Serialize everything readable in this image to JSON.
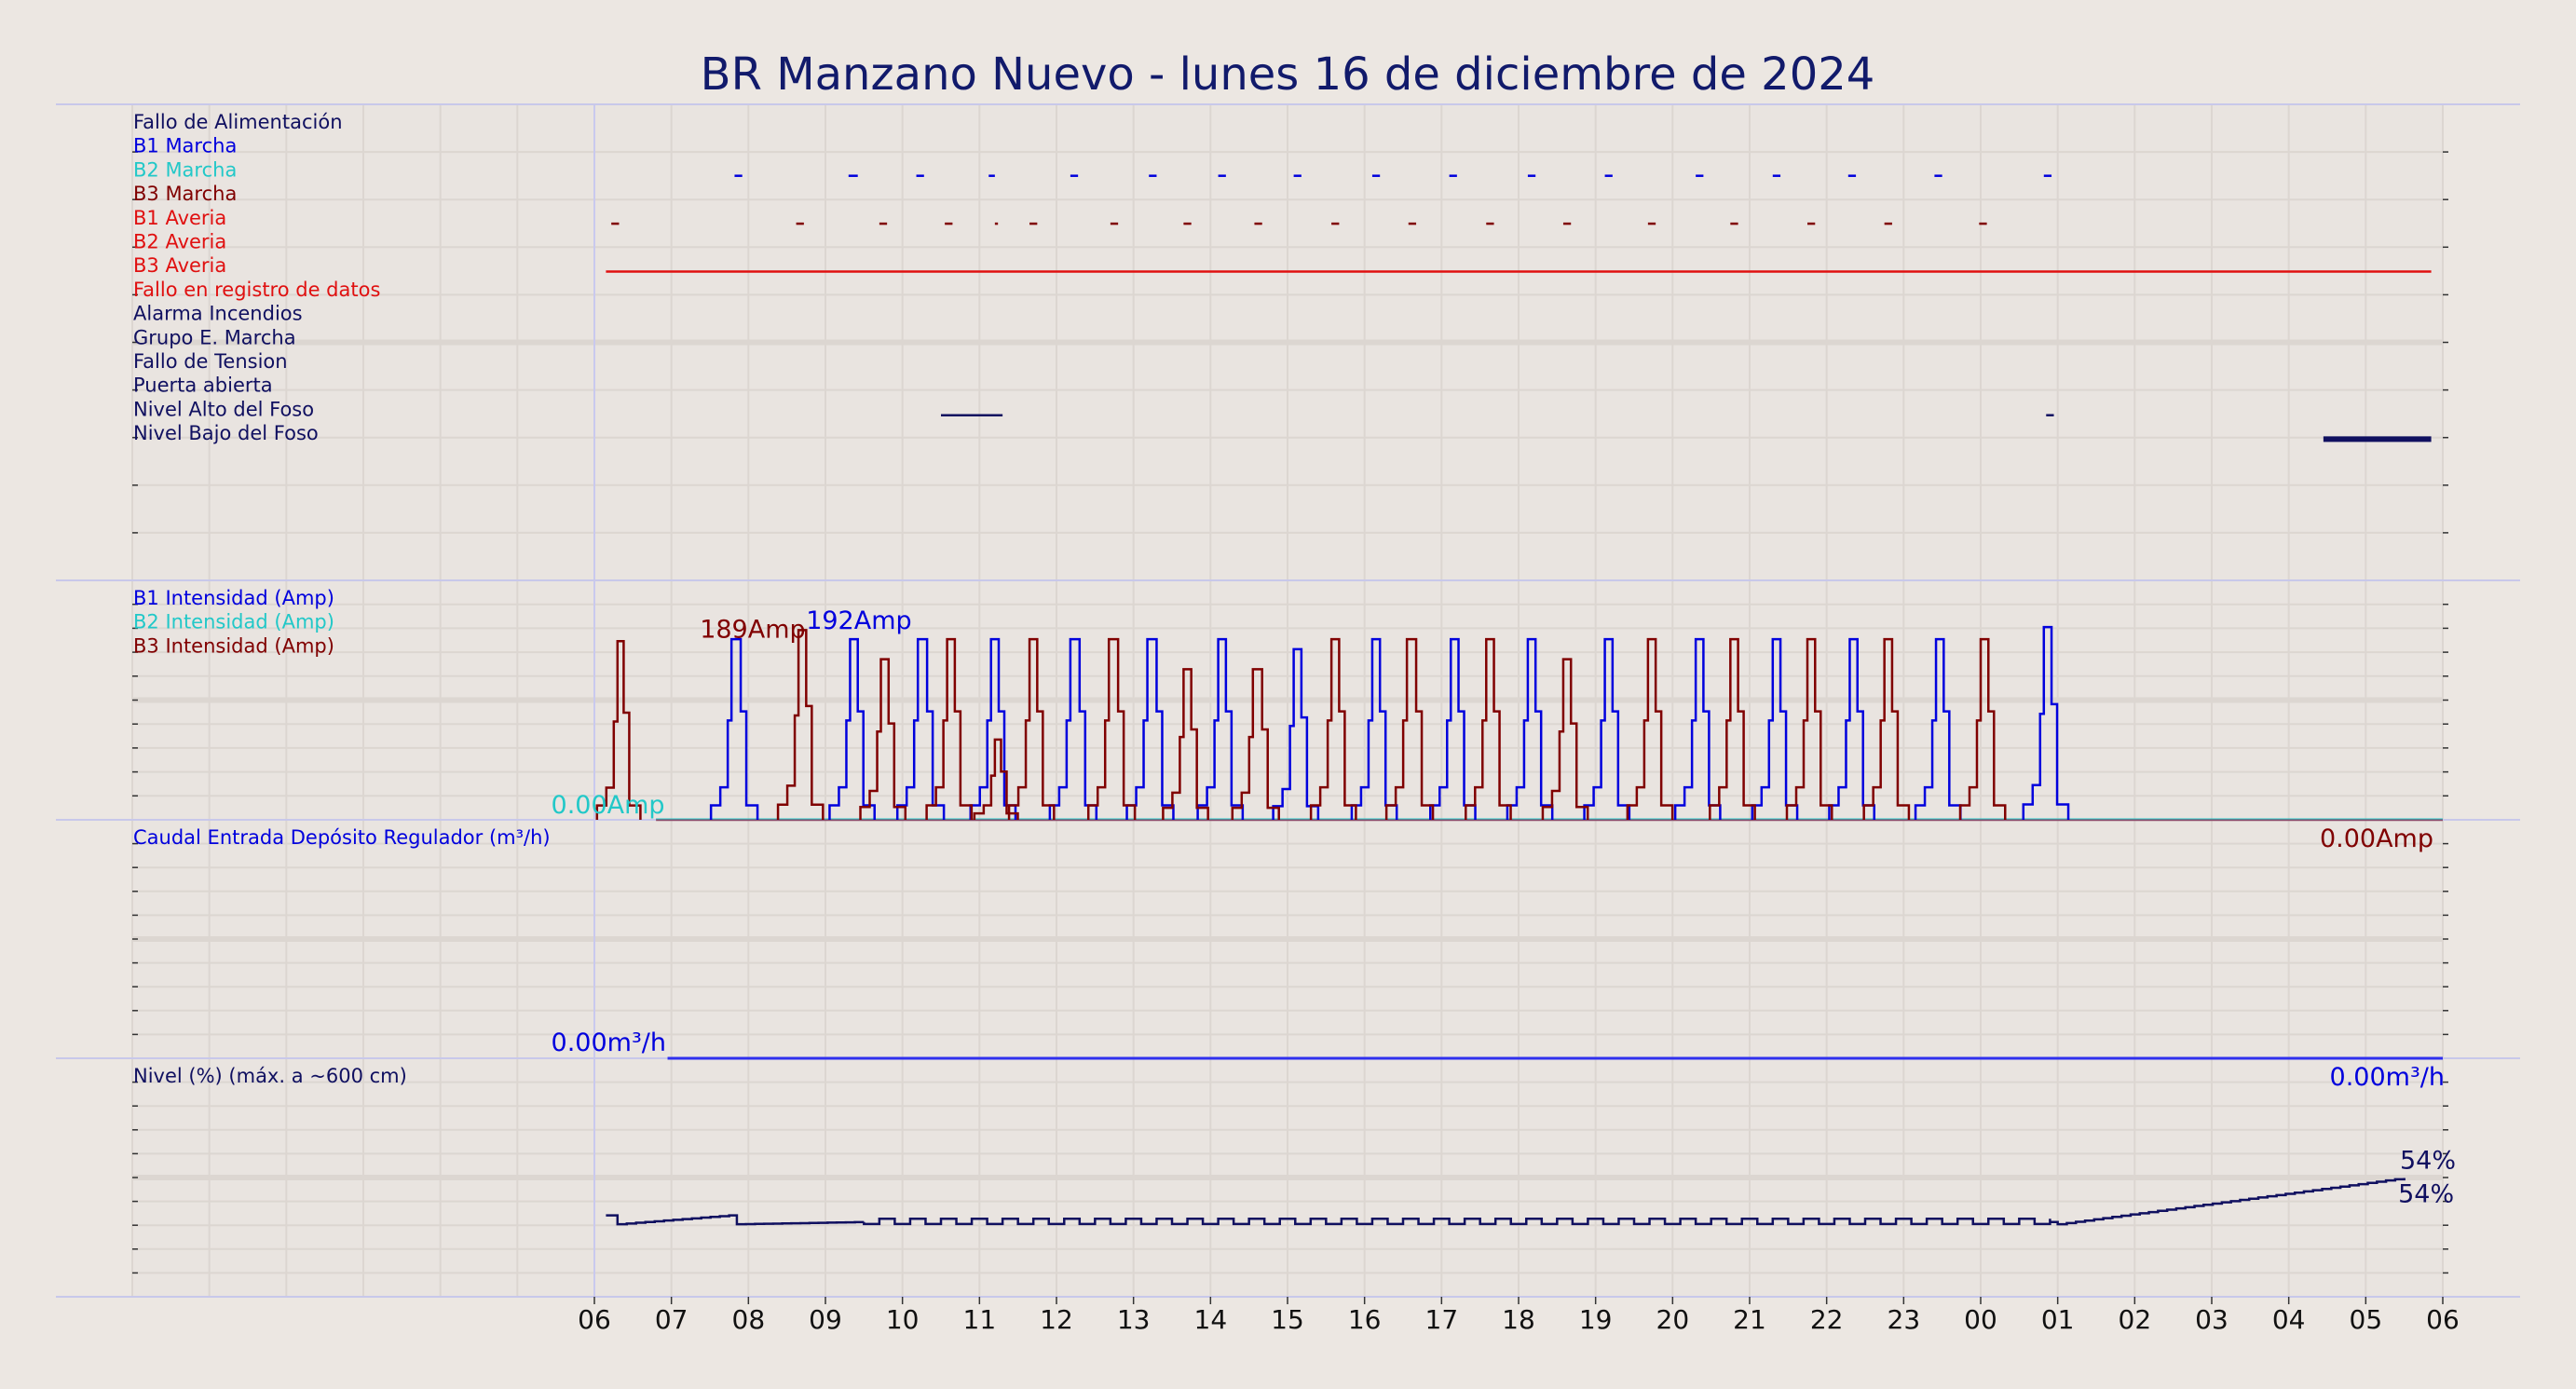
{
  "chart_data": {
    "type": "line",
    "title": "BR Manzano Nuevo   -   lunes 16 de diciembre de 2024",
    "x_ticks": [
      "06",
      "07",
      "08",
      "09",
      "10",
      "11",
      "12",
      "13",
      "14",
      "15",
      "16",
      "17",
      "18",
      "19",
      "20",
      "21",
      "22",
      "23",
      "00",
      "01",
      "02",
      "03",
      "04",
      "05",
      "06"
    ],
    "x_unit": "hours",
    "x_range": [
      0,
      24
    ],
    "grid": true,
    "colors": {
      "b1": "#0000dd",
      "b2": "#22c8c8",
      "b3": "#800000",
      "alarm": "#e01010",
      "navy": "#101060"
    },
    "panels": [
      {
        "name": "digital-signals",
        "labels": [
          {
            "text": "Fallo de Alimentación",
            "color": "#101060"
          },
          {
            "text": "B1 Marcha",
            "color": "#0000dd"
          },
          {
            "text": "B2 Marcha",
            "color": "#22c8c8"
          },
          {
            "text": "B3 Marcha",
            "color": "#800000"
          },
          {
            "text": "B1 Averia",
            "color": "#e01010"
          },
          {
            "text": "B2 Averia",
            "color": "#e01010"
          },
          {
            "text": "B3 Averia",
            "color": "#e01010"
          },
          {
            "text": "Fallo en registro de datos",
            "color": "#e01010"
          },
          {
            "text": "Alarma Incendios",
            "color": "#101060"
          },
          {
            "text": "Grupo E. Marcha",
            "color": "#101060"
          },
          {
            "text": "Fallo de Tension",
            "color": "#101060"
          },
          {
            "text": "Puerta abierta",
            "color": "#101060"
          },
          {
            "text": "Nivel Alto del Foso",
            "color": "#101060"
          },
          {
            "text": "Nivel Bajo del Foso",
            "color": "#101060"
          }
        ],
        "series": [
          {
            "name": "B1 Marcha",
            "row": 1,
            "color": "#0000dd",
            "intervals": [
              [
                1.82,
                1.92
              ],
              [
                3.3,
                3.42
              ],
              [
                4.18,
                4.28
              ],
              [
                5.12,
                5.2
              ],
              [
                6.18,
                6.28
              ],
              [
                7.2,
                7.3
              ],
              [
                8.1,
                8.2
              ],
              [
                9.08,
                9.18
              ],
              [
                10.1,
                10.2
              ],
              [
                11.1,
                11.2
              ],
              [
                12.12,
                12.22
              ],
              [
                13.12,
                13.22
              ],
              [
                14.3,
                14.4
              ],
              [
                15.3,
                15.4
              ],
              [
                16.28,
                16.38
              ],
              [
                17.4,
                17.5
              ],
              [
                18.82,
                18.92
              ]
            ]
          },
          {
            "name": "B3 Marcha",
            "row": 3,
            "color": "#800000",
            "intervals": [
              [
                0.22,
                0.32
              ],
              [
                2.62,
                2.72
              ],
              [
                3.7,
                3.8
              ],
              [
                4.55,
                4.65
              ],
              [
                5.2,
                5.24
              ],
              [
                5.65,
                5.75
              ],
              [
                6.7,
                6.8
              ],
              [
                7.65,
                7.75
              ],
              [
                8.57,
                8.67
              ],
              [
                9.57,
                9.67
              ],
              [
                10.57,
                10.67
              ],
              [
                11.58,
                11.68
              ],
              [
                12.58,
                12.68
              ],
              [
                13.68,
                13.78
              ],
              [
                14.75,
                14.85
              ],
              [
                15.75,
                15.85
              ],
              [
                16.75,
                16.85
              ],
              [
                17.98,
                18.08
              ]
            ]
          },
          {
            "name": "B2 Averia",
            "row": 5,
            "color": "#e01010",
            "intervals": [
              [
                0.15,
                23.85
              ]
            ]
          },
          {
            "name": "Puerta abierta",
            "row": 11,
            "color": "#101060",
            "intervals": [
              [
                4.5,
                5.3
              ],
              [
                18.85,
                18.95
              ]
            ]
          },
          {
            "name": "Nivel Alto del Foso",
            "row": 12,
            "color": "#101060",
            "width": 6,
            "intervals": [
              [
                22.45,
                23.85
              ]
            ]
          }
        ]
      },
      {
        "name": "intensidad",
        "y_range": [
          0,
          220
        ],
        "labels": [
          {
            "text": "B1 Intensidad (Amp)",
            "color": "#0000dd"
          },
          {
            "text": "B2 Intensidad (Amp)",
            "color": "#22c8c8"
          },
          {
            "text": "B3 Intensidad (Amp)",
            "color": "#800000"
          }
        ],
        "annotations": [
          {
            "text": "189Amp",
            "color": "#800000",
            "x": 2.7,
            "y": 189
          },
          {
            "text": "192Amp",
            "color": "#0000dd",
            "x": 4.2,
            "y": 192
          },
          {
            "text": "0.00Amp",
            "color": "#22c8c8",
            "x": 0.95,
            "y": 0
          },
          {
            "text": "0.00Amp",
            "color": "#800000",
            "x": 24,
            "y": 0
          }
        ],
        "series": [
          {
            "name": "B1 Intensidad (Amp)",
            "color": "#0000dd",
            "pulses": [
              [
                1.78,
                1.9,
                180
              ],
              [
                3.32,
                3.42,
                180
              ],
              [
                4.2,
                4.32,
                180
              ],
              [
                5.15,
                5.25,
                180
              ],
              [
                6.18,
                6.3,
                180
              ],
              [
                7.18,
                7.3,
                180
              ],
              [
                8.1,
                8.2,
                180
              ],
              [
                9.08,
                9.18,
                170
              ],
              [
                10.1,
                10.2,
                180
              ],
              [
                11.12,
                11.22,
                180
              ],
              [
                12.12,
                12.22,
                180
              ],
              [
                13.12,
                13.22,
                180
              ],
              [
                14.3,
                14.4,
                180
              ],
              [
                15.3,
                15.4,
                180
              ],
              [
                16.3,
                16.4,
                180
              ],
              [
                17.42,
                17.52,
                180
              ],
              [
                18.82,
                18.92,
                192
              ]
            ]
          },
          {
            "name": "B2 Intensidad (Amp)",
            "color": "#22c8c8",
            "pulses": []
          },
          {
            "name": "B3 Intensidad (Amp)",
            "color": "#800000",
            "pulses": [
              [
                0.3,
                0.38,
                178
              ],
              [
                2.65,
                2.75,
                189
              ],
              [
                3.72,
                3.82,
                160
              ],
              [
                4.58,
                4.68,
                180
              ],
              [
                5.2,
                5.28,
                80
              ],
              [
                5.65,
                5.75,
                180
              ],
              [
                6.68,
                6.8,
                180
              ],
              [
                7.65,
                7.75,
                150
              ],
              [
                8.55,
                8.67,
                150
              ],
              [
                9.57,
                9.67,
                180
              ],
              [
                10.55,
                10.67,
                180
              ],
              [
                11.58,
                11.68,
                180
              ],
              [
                12.58,
                12.68,
                160
              ],
              [
                13.68,
                13.78,
                180
              ],
              [
                14.75,
                14.85,
                180
              ],
              [
                15.75,
                15.85,
                180
              ],
              [
                16.75,
                16.85,
                180
              ],
              [
                18.0,
                18.1,
                180
              ]
            ]
          }
        ]
      },
      {
        "name": "caudal",
        "y_range": [
          0,
          100
        ],
        "labels": [
          {
            "text": "Caudal Entrada Depósito Regulador (m³/h)",
            "color": "#0000dd"
          }
        ],
        "annotations": [
          {
            "text": "0.00m³/h",
            "color": "#0000dd",
            "x": 0.95,
            "y": 0
          },
          {
            "text": "0.00m³/h",
            "color": "#0000dd",
            "x": 24,
            "y": 0
          }
        ],
        "series": [
          {
            "name": "Caudal Entrada Depósito Regulador (m³/h)",
            "color": "#3030ee",
            "points": [
              [
                0.95,
                0
              ],
              [
                24,
                0
              ]
            ]
          }
        ]
      },
      {
        "name": "nivel",
        "y_range": [
          0,
          100
        ],
        "labels": [
          {
            "text": "Nivel (%) (máx. a ~600 cm)",
            "color": "#101060"
          }
        ],
        "annotations": [
          {
            "text": "54%",
            "color": "#101060",
            "x": 24,
            "y": 54
          },
          {
            "text": "54%",
            "color": "#101060",
            "x": 23.3,
            "y": 54
          }
        ],
        "series": [
          {
            "name": "Nivel (%) (máx. a ~600 cm)",
            "color": "#101060",
            "base_level": 34,
            "wiggle": 3,
            "points": [
              [
                0.15,
                37
              ],
              [
                0.3,
                33
              ],
              [
                1.75,
                37
              ],
              [
                1.85,
                33
              ],
              [
                3.5,
                34
              ],
              [
                18.9,
                34
              ],
              [
                19.0,
                33
              ],
              [
                23.5,
                54
              ]
            ]
          }
        ]
      }
    ]
  }
}
